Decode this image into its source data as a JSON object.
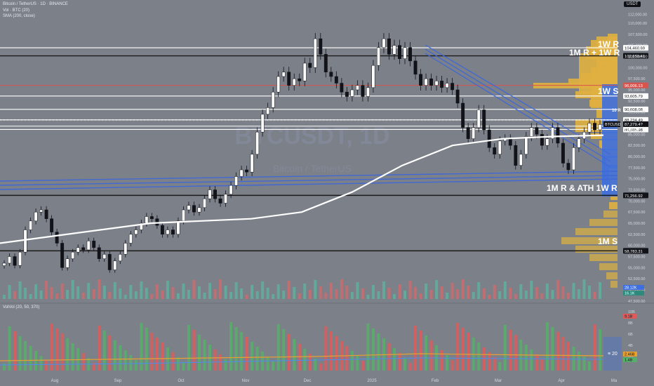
{
  "header": {
    "symbol_line": "Bitcoin / TetherUS · 1D · BINANCE",
    "vol_line": "Vol · BTC (20)",
    "sma_line": "SMA (200, close)",
    "currency_button": "USDT",
    "watermark": "BTCUSDT, 1D",
    "watermark_sub": "Bitcoin / TetherUS"
  },
  "volume_pane": {
    "label": "VolVol (20, 50, 370)",
    "scale_labels": [
      "10B",
      "8B",
      "6B",
      "4B",
      "2B"
    ],
    "chips": [
      {
        "text": "9.1B",
        "kind": "red"
      },
      {
        "text": "2.46B",
        "kind": "orange"
      },
      {
        "text": "1.4B",
        "kind": "green"
      }
    ],
    "overlay_text": "≡ 20"
  },
  "chart_data": {
    "type": "candlestick",
    "title": "BTCUSDT, 1D",
    "x_ticks": [
      "Aug",
      "Sep",
      "Oct",
      "Nov",
      "Dec",
      "2025",
      "Feb",
      "Mar",
      "Apr",
      "Ma"
    ],
    "y_ticks": [
      112000,
      110000,
      107500,
      105000,
      102500,
      100000,
      97500,
      95000,
      92500,
      90000,
      87500,
      85000,
      82500,
      80000,
      77500,
      75000,
      72500,
      70000,
      67500,
      65000,
      62500,
      60000,
      57500,
      55000,
      52500,
      50000,
      47500
    ],
    "ylim": [
      47000,
      113000
    ],
    "series": [
      {
        "name": "BTCUSDT",
        "values": [
          56000,
          57500,
          55500,
          58500,
          63500,
          65500,
          67500,
          68000,
          66000,
          63000,
          60500,
          55000,
          57000,
          58500,
          59500,
          59000,
          61000,
          59500,
          57000,
          58000,
          54500,
          56500,
          58000,
          60500,
          62500,
          63500,
          65000,
          66500,
          66000,
          64500,
          62500,
          63500,
          62500,
          65500,
          68000,
          69000,
          67500,
          68500,
          70500,
          72500,
          70500,
          69500,
          71500,
          73500,
          75500,
          77000,
          76500,
          80500,
          85500,
          89500,
          91000,
          94500,
          98000,
          99000,
          96000,
          97500,
          97000,
          101000,
          100000,
          106500,
          103000,
          99000,
          98000,
          96500,
          94500,
          93500,
          95000,
          96000,
          93500,
          95500,
          100500,
          104500,
          106500,
          103000,
          105000,
          102000,
          104500,
          101500,
          98500,
          96000,
          97500,
          96000,
          97000,
          95500,
          96500,
          95000,
          92000,
          86500,
          84000,
          86500,
          90500,
          86000,
          82000,
          80500,
          83500,
          84000,
          82500,
          78000,
          80500,
          84500,
          86500,
          85000,
          82500,
          84000,
          86500,
          83000,
          78500,
          77000,
          82000,
          84000,
          85500,
          87500,
          86000,
          87200
        ]
      },
      {
        "name": "SMA (200, close)",
        "values": [
          60500,
          62000,
          63500,
          65000,
          65500,
          66000,
          67500,
          72000,
          78000,
          82500,
          84000,
          84500,
          84800
        ]
      }
    ],
    "levels": [
      {
        "price": 104460.69,
        "label": "104,460.69",
        "color": "white"
      },
      {
        "price": 102650.41,
        "label": "102,650.41",
        "color": "black"
      },
      {
        "price": 96006.13,
        "label": "96,006.13",
        "color": "red"
      },
      {
        "price": 93605.79,
        "label": "93,605.79",
        "color": "white"
      },
      {
        "price": 90608.08,
        "label": "90,608.08",
        "color": "white"
      },
      {
        "price": 88234.49,
        "label": "88,234.49",
        "color": "white"
      },
      {
        "price": 86830.72,
        "label": "86,830.72",
        "color": "white"
      },
      {
        "price": 86085.98,
        "label": "86,085.98",
        "color": "white"
      },
      {
        "price": 71256.92,
        "label": "71,256.92",
        "color": "black"
      },
      {
        "price": 58783.31,
        "label": "58,783.31",
        "color": "black"
      }
    ],
    "current_price": {
      "symbol": "BTCUSD",
      "price_label": "87,279.4?",
      "timer": "11:43:27"
    },
    "annotations": [
      "1W R",
      "1M R + 1W R",
      "1W S",
      "1M R & ATH 1W R",
      "1M S",
      "10 R",
      "10 S"
    ],
    "volume_chips": [
      "28.12K",
      "16.1K"
    ],
    "grid": false,
    "legend_position": "top-left"
  }
}
